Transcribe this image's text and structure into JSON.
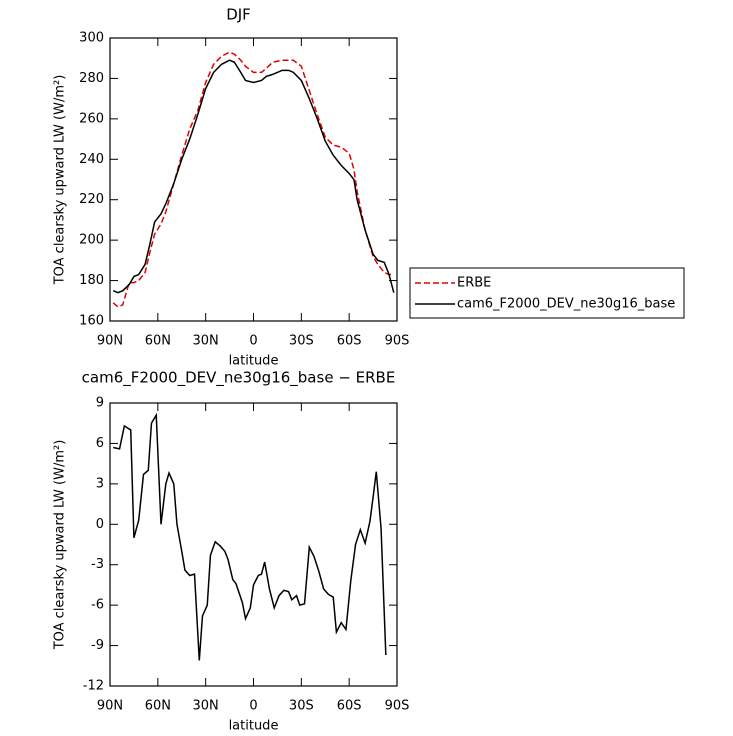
{
  "chart_data": [
    {
      "type": "line",
      "title": "DJF",
      "xlabel": "latitude",
      "ylabel": "TOA clearsky upward LW (W/m²)",
      "xlim": [
        90,
        -90
      ],
      "xticks": [
        {
          "value": 90,
          "label": "90N"
        },
        {
          "value": 60,
          "label": "60N"
        },
        {
          "value": 30,
          "label": "30N"
        },
        0,
        {
          "value": -30,
          "label": "30S"
        },
        {
          "value": -60,
          "label": "60S"
        },
        {
          "value": -90,
          "label": "90S"
        }
      ],
      "ylim": [
        160,
        300
      ],
      "yticks": [
        160,
        180,
        200,
        220,
        240,
        260,
        280,
        300
      ],
      "legend": "right",
      "x": [
        88,
        85,
        82,
        78,
        75,
        72,
        68,
        65,
        62,
        58,
        55,
        50,
        45,
        40,
        35,
        30,
        25,
        20,
        15,
        12,
        8,
        5,
        0,
        -5,
        -8,
        -12,
        -18,
        -22,
        -25,
        -30,
        -35,
        -40,
        -45,
        -50,
        -55,
        -60,
        -63,
        -65,
        -70,
        -75,
        -78,
        -82,
        -85,
        -88
      ],
      "series": [
        {
          "name": "ERBE",
          "color": "#e00000",
          "line_style": "dashed",
          "values": [
            169,
            167,
            168,
            179,
            179,
            180,
            184,
            194,
            203,
            208,
            214,
            228,
            242,
            255,
            264,
            278,
            287,
            291,
            293,
            292,
            289,
            286,
            283,
            283,
            285,
            288,
            289,
            289,
            289,
            286,
            274,
            262,
            251,
            247,
            246,
            243,
            235,
            224,
            205,
            192,
            188,
            184,
            183,
            183
          ]
        },
        {
          "name": "cam6_F2000_DEV_ne30g16_base",
          "color": "#000000",
          "line_style": "solid",
          "values": [
            175,
            174,
            175,
            178,
            182,
            183,
            188,
            198,
            209,
            213,
            218,
            228,
            240,
            250,
            262,
            275,
            283,
            287,
            289,
            288,
            283,
            279,
            278,
            279,
            281,
            282,
            284,
            284,
            283,
            279,
            270,
            260,
            249,
            242,
            237,
            233,
            230,
            220,
            205,
            193,
            190,
            189,
            183,
            174
          ]
        }
      ]
    },
    {
      "type": "line",
      "title": "cam6_F2000_DEV_ne30g16_base − ERBE",
      "xlabel": "latitude",
      "ylabel": "TOA clearsky upward LW (W/m²)",
      "xlim": [
        90,
        -90
      ],
      "xticks": [
        {
          "value": 90,
          "label": "90N"
        },
        {
          "value": 60,
          "label": "60N"
        },
        {
          "value": 30,
          "label": "30N"
        },
        0,
        {
          "value": -30,
          "label": "30S"
        },
        {
          "value": -60,
          "label": "60S"
        },
        {
          "value": -90,
          "label": "90S"
        }
      ],
      "ylim": [
        -12,
        9
      ],
      "yticks": [
        -12,
        -9,
        -6,
        -3,
        0,
        3,
        6,
        9
      ],
      "x": [
        88,
        84,
        81,
        77,
        75,
        72,
        69,
        66,
        64,
        61,
        58,
        55,
        53,
        50,
        48,
        45,
        43,
        40,
        37,
        34,
        32,
        29,
        27,
        24,
        21,
        18,
        16,
        13,
        11,
        7,
        5,
        2,
        0,
        -3,
        -5,
        -7,
        -10,
        -13,
        -16,
        -19,
        -22,
        -24,
        -27,
        -29,
        -32,
        -35,
        -38,
        -41,
        -44,
        -47,
        -50,
        -52,
        -55,
        -58,
        -61,
        -64,
        -67,
        -70,
        -73,
        -75,
        -77,
        -80,
        -83
      ],
      "series": [
        {
          "color": "#000000",
          "line_style": "solid",
          "values": [
            5.7,
            5.6,
            7.3,
            7,
            -1,
            0.3,
            3.7,
            4,
            7.5,
            8.1,
            0,
            3,
            3.8,
            3,
            0,
            -2,
            -3.4,
            -3.8,
            -3.7,
            -10.1,
            -6.8,
            -6,
            -2.3,
            -1.3,
            -1.6,
            -2,
            -2.6,
            -4.1,
            -4.4,
            -5.8,
            -7,
            -6.2,
            -4.5,
            -3.8,
            -3.7,
            -2.8,
            -4.8,
            -6.2,
            -5.3,
            -4.9,
            -5,
            -5.6,
            -5.3,
            -6,
            -5.9,
            -1.7,
            -2.4,
            -3.5,
            -4.8,
            -5.2,
            -5.4,
            -8,
            -7.3,
            -7.8,
            -4.2,
            -1.5,
            -0.4,
            -1.4,
            0.2,
            2,
            3.9,
            -0.3,
            -9.7
          ]
        }
      ]
    }
  ]
}
